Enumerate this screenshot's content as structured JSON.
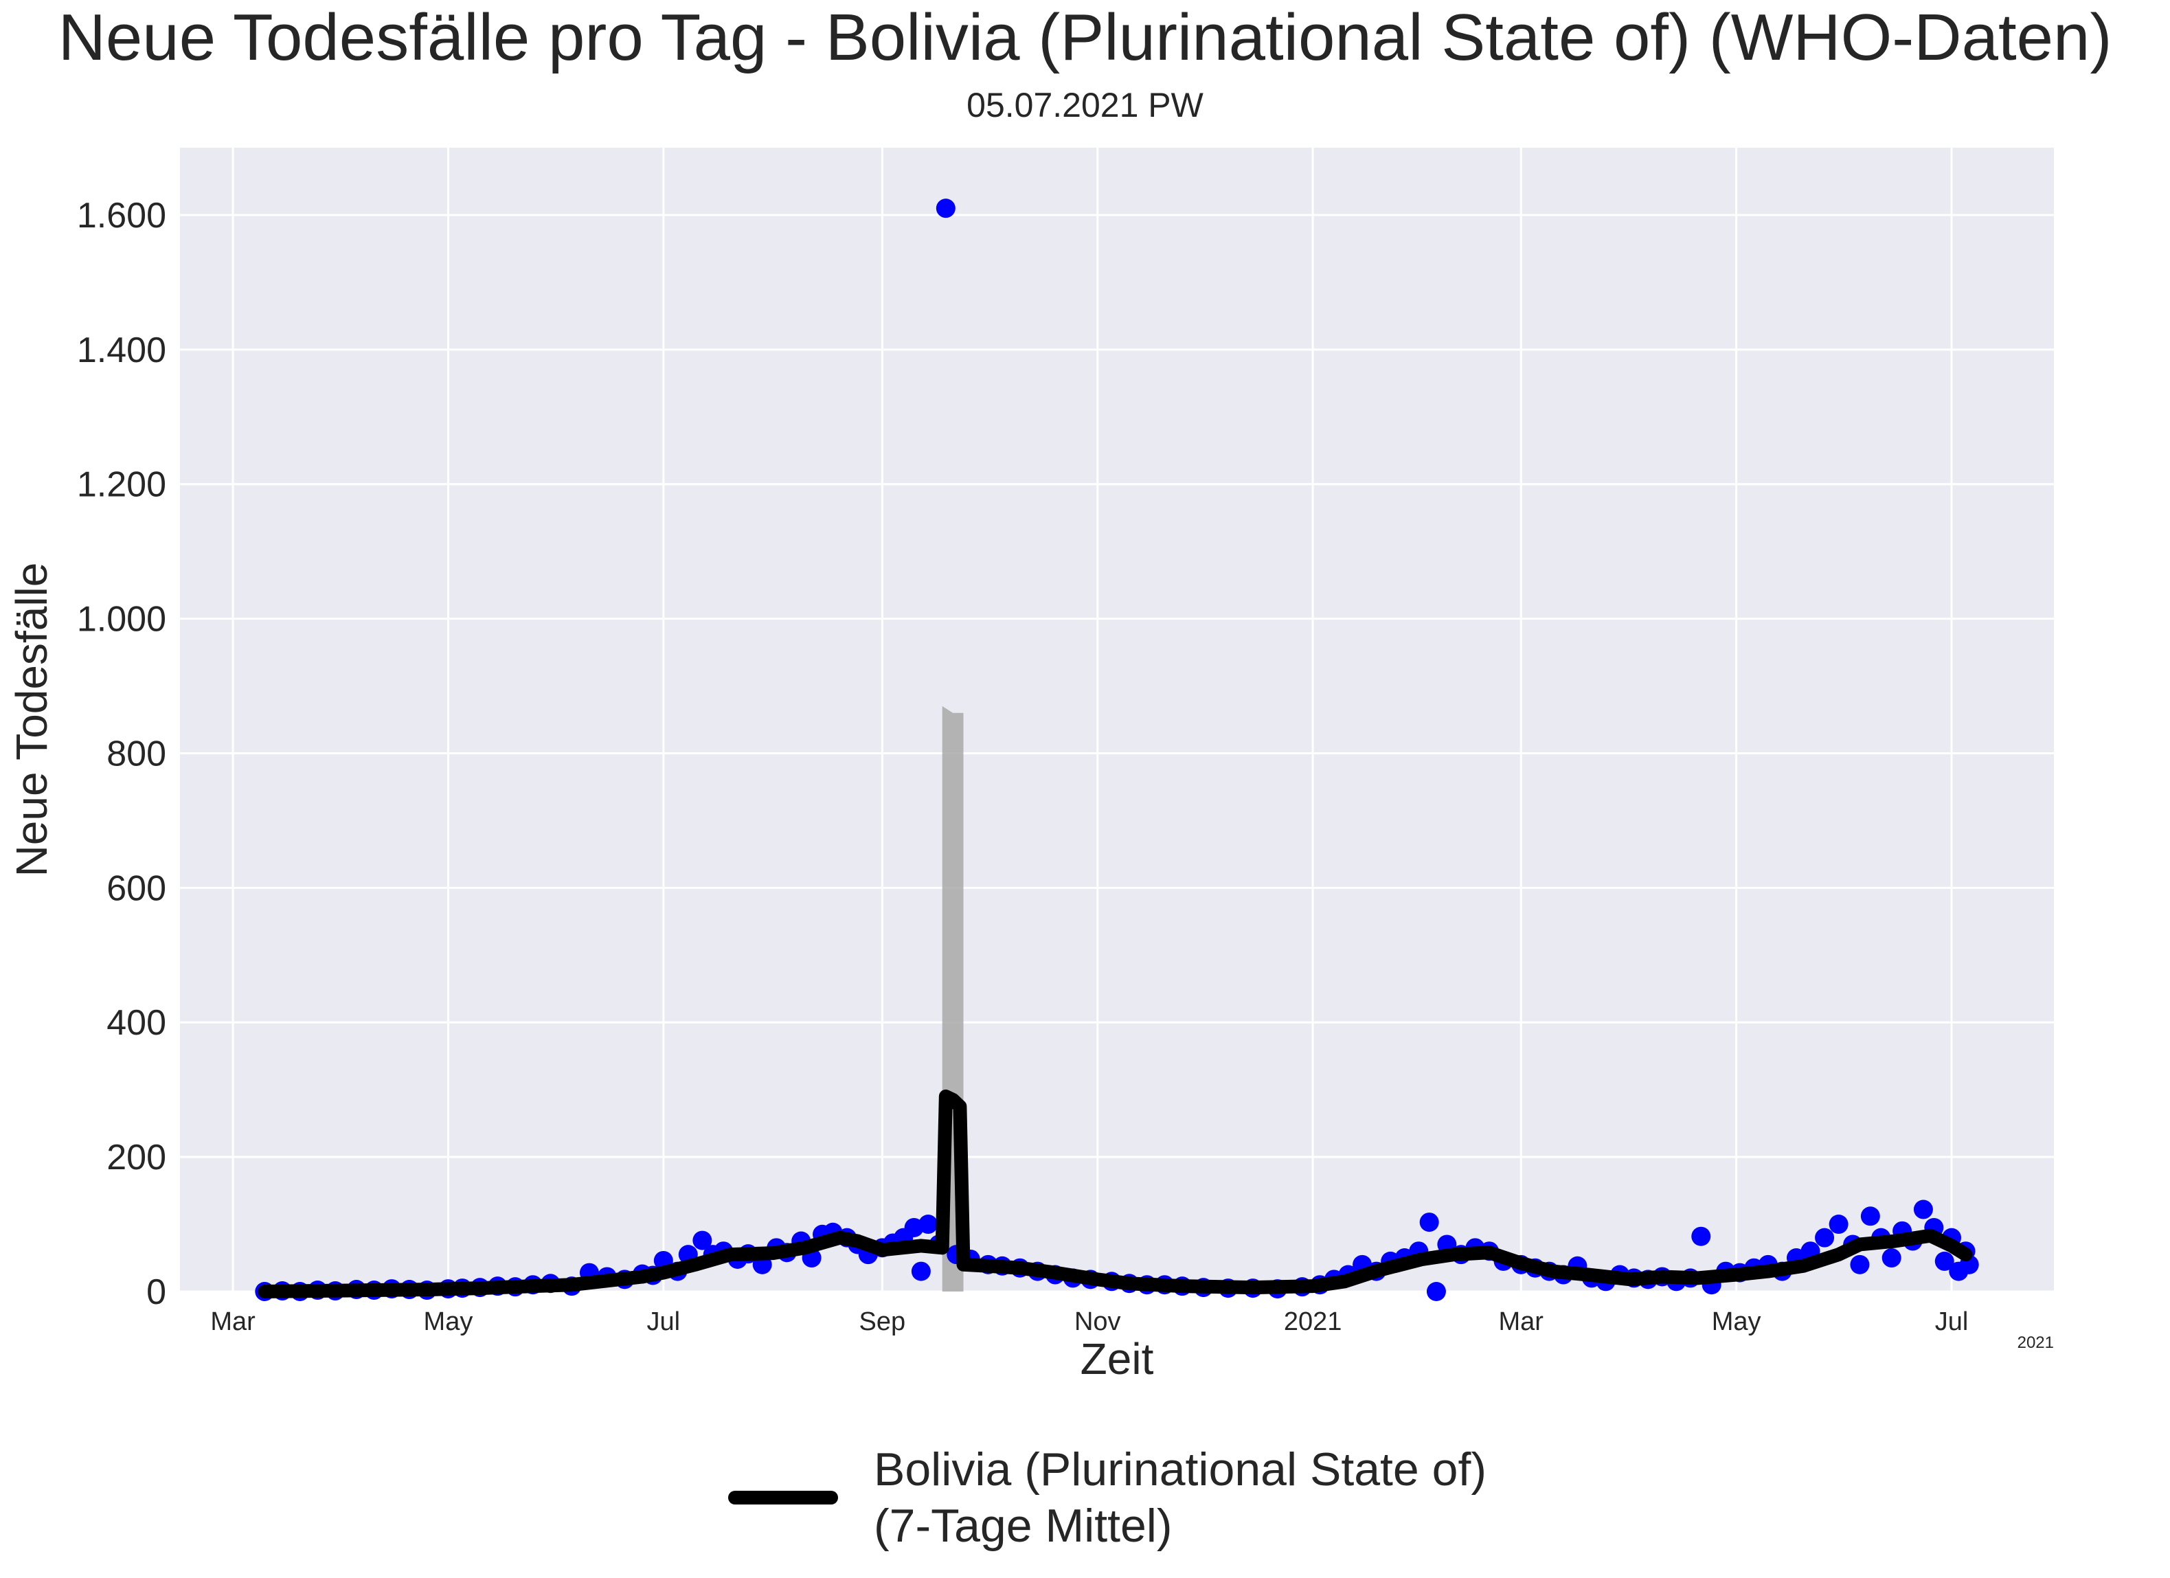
{
  "title": "Neue Todesfälle pro Tag - Bolivia (Plurinational State of) (WHO-Daten)",
  "subtitle": "05.07.2021 PW",
  "chart_data": {
    "type": "scatter+line",
    "xlabel": "Zeit",
    "ylabel": "Neue Todesfälle",
    "xlim": [
      "2020-02-15",
      "2021-07-30"
    ],
    "ylim": [
      0,
      1700
    ],
    "yticks": [
      0,
      200,
      400,
      600,
      800,
      1000,
      1200,
      1400,
      1600
    ],
    "ytick_labels": [
      "0",
      "200",
      "400",
      "600",
      "800",
      "1.000",
      "1.200",
      "1.400",
      "1.600"
    ],
    "xticks": [
      "2020-03-01",
      "2020-05-01",
      "2020-07-01",
      "2020-09-01",
      "2020-11-01",
      "2021-01-01",
      "2021-03-01",
      "2021-05-01",
      "2021-07-01"
    ],
    "xtick_labels": [
      "Mar",
      "May",
      "Jul",
      "Sep",
      "Nov",
      "2021",
      "Mar",
      "May",
      "Jul"
    ],
    "x_offset_label": "2021",
    "grid": true,
    "legend_position": "bottom-center",
    "series": [
      {
        "name": "Bolivia (Plurinational State of) (7-Tage Mittel)",
        "kind": "line",
        "color": "#000000",
        "points": [
          [
            "2020-03-10",
            0
          ],
          [
            "2020-03-25",
            1
          ],
          [
            "2020-04-10",
            2
          ],
          [
            "2020-04-25",
            3
          ],
          [
            "2020-05-10",
            5
          ],
          [
            "2020-05-25",
            8
          ],
          [
            "2020-06-05",
            10
          ],
          [
            "2020-06-15",
            16
          ],
          [
            "2020-06-25",
            22
          ],
          [
            "2020-07-01",
            28
          ],
          [
            "2020-07-10",
            40
          ],
          [
            "2020-07-20",
            55
          ],
          [
            "2020-08-01",
            57
          ],
          [
            "2020-08-10",
            65
          ],
          [
            "2020-08-20",
            80
          ],
          [
            "2020-08-25",
            75
          ],
          [
            "2020-09-01",
            62
          ],
          [
            "2020-09-12",
            68
          ],
          [
            "2020-09-18",
            65
          ],
          [
            "2020-09-19",
            290
          ],
          [
            "2020-09-21",
            285
          ],
          [
            "2020-09-23",
            275
          ],
          [
            "2020-09-24",
            40
          ],
          [
            "2020-10-01",
            38
          ],
          [
            "2020-10-10",
            35
          ],
          [
            "2020-10-20",
            28
          ],
          [
            "2020-11-01",
            18
          ],
          [
            "2020-11-10",
            12
          ],
          [
            "2020-11-25",
            8
          ],
          [
            "2020-12-15",
            6
          ],
          [
            "2021-01-01",
            8
          ],
          [
            "2021-01-10",
            15
          ],
          [
            "2021-01-20",
            32
          ],
          [
            "2021-02-01",
            48
          ],
          [
            "2021-02-10",
            55
          ],
          [
            "2021-02-20",
            58
          ],
          [
            "2021-03-01",
            42
          ],
          [
            "2021-03-10",
            30
          ],
          [
            "2021-03-20",
            25
          ],
          [
            "2021-04-01",
            18
          ],
          [
            "2021-04-10",
            22
          ],
          [
            "2021-04-20",
            20
          ],
          [
            "2021-05-01",
            25
          ],
          [
            "2021-05-10",
            30
          ],
          [
            "2021-05-20",
            38
          ],
          [
            "2021-05-30",
            55
          ],
          [
            "2021-06-05",
            70
          ],
          [
            "2021-06-15",
            75
          ],
          [
            "2021-06-25",
            83
          ],
          [
            "2021-07-01",
            68
          ],
          [
            "2021-07-05",
            55
          ]
        ]
      },
      {
        "name": "",
        "kind": "points",
        "color": "#0000ff",
        "points": [
          [
            "2020-03-10",
            0
          ],
          [
            "2020-03-15",
            1
          ],
          [
            "2020-03-20",
            0
          ],
          [
            "2020-03-25",
            2
          ],
          [
            "2020-03-30",
            1
          ],
          [
            "2020-04-05",
            3
          ],
          [
            "2020-04-10",
            2
          ],
          [
            "2020-04-15",
            4
          ],
          [
            "2020-04-20",
            3
          ],
          [
            "2020-04-25",
            2
          ],
          [
            "2020-05-01",
            4
          ],
          [
            "2020-05-05",
            5
          ],
          [
            "2020-05-10",
            6
          ],
          [
            "2020-05-15",
            8
          ],
          [
            "2020-05-20",
            7
          ],
          [
            "2020-05-25",
            10
          ],
          [
            "2020-05-30",
            12
          ],
          [
            "2020-06-05",
            8
          ],
          [
            "2020-06-10",
            28
          ],
          [
            "2020-06-15",
            22
          ],
          [
            "2020-06-20",
            18
          ],
          [
            "2020-06-25",
            26
          ],
          [
            "2020-06-28",
            24
          ],
          [
            "2020-07-01",
            46
          ],
          [
            "2020-07-05",
            30
          ],
          [
            "2020-07-08",
            55
          ],
          [
            "2020-07-12",
            76
          ],
          [
            "2020-07-15",
            55
          ],
          [
            "2020-07-18",
            60
          ],
          [
            "2020-07-22",
            48
          ],
          [
            "2020-07-25",
            56
          ],
          [
            "2020-07-29",
            40
          ],
          [
            "2020-08-02",
            65
          ],
          [
            "2020-08-05",
            58
          ],
          [
            "2020-08-09",
            75
          ],
          [
            "2020-08-12",
            50
          ],
          [
            "2020-08-15",
            85
          ],
          [
            "2020-08-18",
            88
          ],
          [
            "2020-08-22",
            80
          ],
          [
            "2020-08-25",
            70
          ],
          [
            "2020-08-28",
            55
          ],
          [
            "2020-09-01",
            65
          ],
          [
            "2020-09-04",
            72
          ],
          [
            "2020-09-07",
            80
          ],
          [
            "2020-09-10",
            95
          ],
          [
            "2020-09-12",
            30
          ],
          [
            "2020-09-14",
            100
          ],
          [
            "2020-09-17",
            70
          ],
          [
            "2020-09-19",
            1610
          ],
          [
            "2020-09-22",
            55
          ],
          [
            "2020-09-26",
            48
          ],
          [
            "2020-10-01",
            40
          ],
          [
            "2020-10-05",
            38
          ],
          [
            "2020-10-10",
            35
          ],
          [
            "2020-10-15",
            30
          ],
          [
            "2020-10-20",
            25
          ],
          [
            "2020-10-25",
            20
          ],
          [
            "2020-10-30",
            18
          ],
          [
            "2020-11-05",
            15
          ],
          [
            "2020-11-10",
            12
          ],
          [
            "2020-11-15",
            10
          ],
          [
            "2020-11-20",
            10
          ],
          [
            "2020-11-25",
            8
          ],
          [
            "2020-12-01",
            6
          ],
          [
            "2020-12-08",
            5
          ],
          [
            "2020-12-15",
            5
          ],
          [
            "2020-12-22",
            4
          ],
          [
            "2020-12-29",
            7
          ],
          [
            "2021-01-03",
            10
          ],
          [
            "2021-01-07",
            18
          ],
          [
            "2021-01-11",
            25
          ],
          [
            "2021-01-15",
            40
          ],
          [
            "2021-01-19",
            30
          ],
          [
            "2021-01-23",
            45
          ],
          [
            "2021-01-27",
            50
          ],
          [
            "2021-01-31",
            60
          ],
          [
            "2021-02-03",
            103
          ],
          [
            "2021-02-05",
            0
          ],
          [
            "2021-02-08",
            70
          ],
          [
            "2021-02-12",
            55
          ],
          [
            "2021-02-16",
            65
          ],
          [
            "2021-02-20",
            60
          ],
          [
            "2021-02-24",
            45
          ],
          [
            "2021-03-01",
            40
          ],
          [
            "2021-03-05",
            35
          ],
          [
            "2021-03-09",
            30
          ],
          [
            "2021-03-13",
            25
          ],
          [
            "2021-03-17",
            38
          ],
          [
            "2021-03-21",
            20
          ],
          [
            "2021-03-25",
            15
          ],
          [
            "2021-03-29",
            25
          ],
          [
            "2021-04-02",
            20
          ],
          [
            "2021-04-06",
            18
          ],
          [
            "2021-04-10",
            22
          ],
          [
            "2021-04-14",
            15
          ],
          [
            "2021-04-18",
            20
          ],
          [
            "2021-04-21",
            82
          ],
          [
            "2021-04-24",
            10
          ],
          [
            "2021-04-28",
            30
          ],
          [
            "2021-05-02",
            28
          ],
          [
            "2021-05-06",
            35
          ],
          [
            "2021-05-10",
            40
          ],
          [
            "2021-05-14",
            30
          ],
          [
            "2021-05-18",
            50
          ],
          [
            "2021-05-22",
            60
          ],
          [
            "2021-05-26",
            80
          ],
          [
            "2021-05-30",
            100
          ],
          [
            "2021-06-03",
            70
          ],
          [
            "2021-06-05",
            40
          ],
          [
            "2021-06-08",
            112
          ],
          [
            "2021-06-11",
            80
          ],
          [
            "2021-06-14",
            50
          ],
          [
            "2021-06-17",
            90
          ],
          [
            "2021-06-20",
            75
          ],
          [
            "2021-06-23",
            122
          ],
          [
            "2021-06-26",
            95
          ],
          [
            "2021-06-29",
            45
          ],
          [
            "2021-07-01",
            80
          ],
          [
            "2021-07-03",
            30
          ],
          [
            "2021-07-05",
            60
          ],
          [
            "2021-07-06",
            40
          ]
        ]
      }
    ],
    "bands": [
      {
        "color": "#a9a9a9",
        "ranges": [
          [
            "2020-09-18",
            0,
            870
          ],
          [
            "2020-09-21",
            0,
            860
          ],
          [
            "2020-09-24",
            0,
            860
          ]
        ]
      }
    ]
  },
  "colors": {
    "plot_background": "#eaeaf2",
    "grid": "#ffffff",
    "points": "#0000ff",
    "line": "#000000",
    "band": "#a9a9a9"
  }
}
